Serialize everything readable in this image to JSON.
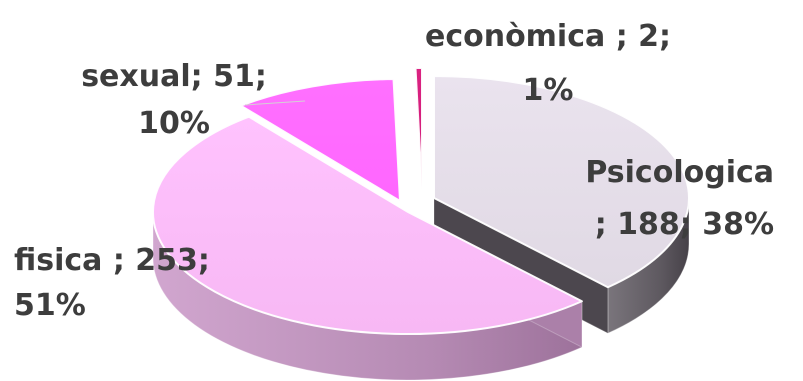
{
  "chart_data": {
    "type": "pie",
    "title": "",
    "slices": [
      {
        "category": "Psicologica",
        "value": 188,
        "percent_label": "38%",
        "color_top": "#E0D9E4",
        "color_side": "#5E5960",
        "label_lines": [
          "Psicologica",
          "; 188; 38%"
        ],
        "label_anchor": "end"
      },
      {
        "category": "fisica",
        "value": 253,
        "percent_label": "51%",
        "color_top": "#F7B8F4",
        "color_side": "#B58AB3",
        "label_lines": [
          "fisica ; 253;",
          "51%"
        ],
        "label_anchor": "start"
      },
      {
        "category": "sexual",
        "value": 51,
        "percent_label": "10%",
        "color_top": "#FF66FF",
        "color_side": "#5B2357",
        "label_lines": [
          "sexual; 51;",
          "10%"
        ],
        "label_anchor": "middle"
      },
      {
        "category": "econòmica",
        "value": 2,
        "percent_label": "1%",
        "color_top": "#D01877",
        "color_side": "#4A1231",
        "label_lines": [
          "econòmica ; 2;",
          "1%"
        ],
        "label_anchor": "middle"
      }
    ]
  }
}
